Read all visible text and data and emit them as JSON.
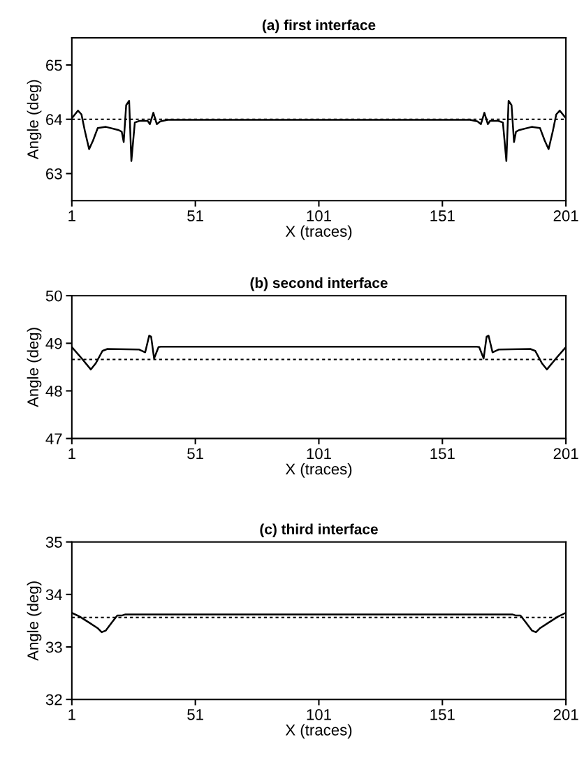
{
  "chart_data": [
    {
      "type": "line",
      "title": "(a) first interface",
      "xlabel": "X (traces)",
      "ylabel": "Angle (deg)",
      "xlim": [
        1,
        201
      ],
      "xticks": [
        1,
        51,
        101,
        151,
        201
      ],
      "ylim": [
        62.5,
        65.5
      ],
      "yticks": [
        63,
        64,
        65
      ],
      "grid": false,
      "legend": false,
      "line_style": "solid",
      "series": [
        {
          "color": "#000000",
          "x": [
            1,
            3.5,
            4.9,
            6.3,
            8,
            9.6,
            11.5,
            14.8,
            20,
            21.2,
            22,
            23,
            24.2,
            25.1,
            26.5,
            28.4,
            31.7,
            32.6,
            34,
            35.4,
            36.8,
            39.8,
            162.2,
            165.2,
            166.6,
            168,
            169.4,
            170.3,
            173.6,
            175.5,
            176.9,
            177.8,
            179,
            180,
            180.8,
            182,
            187.2,
            190.5,
            192.4,
            194,
            195.7,
            197.1,
            198.5,
            201
          ],
          "values": [
            64.02,
            64.16,
            64.09,
            63.78,
            63.45,
            63.61,
            63.84,
            63.86,
            63.8,
            63.77,
            63.58,
            64.26,
            64.34,
            63.23,
            63.94,
            63.97,
            63.97,
            63.91,
            64.12,
            63.91,
            63.96,
            63.99,
            63.99,
            63.96,
            63.91,
            64.12,
            63.91,
            63.97,
            63.97,
            63.94,
            63.23,
            64.34,
            64.26,
            63.58,
            63.77,
            63.8,
            63.86,
            63.84,
            63.61,
            63.45,
            63.78,
            64.09,
            64.16,
            64.02
          ]
        }
      ],
      "ref_lines": [
        {
          "axis": "y",
          "value": 64.0,
          "color": "#000000",
          "line_style": "dotted"
        }
      ]
    },
    {
      "type": "line",
      "title": "(b) second interface",
      "xlabel": "X (traces)",
      "ylabel": "Angle (deg)",
      "xlim": [
        1,
        201
      ],
      "xticks": [
        1,
        51,
        101,
        151,
        201
      ],
      "ylim": [
        47,
        50
      ],
      "yticks": [
        47,
        48,
        49,
        50
      ],
      "grid": false,
      "legend": false,
      "line_style": "solid",
      "series": [
        {
          "color": "#000000",
          "x": [
            1,
            4.7,
            8.7,
            10.7,
            13.4,
            15.4,
            28.1,
            30.7,
            32.3,
            33.1,
            34.3,
            36.1,
            37.4,
            164.6,
            165.9,
            167.7,
            168.9,
            169.7,
            171.3,
            173.9,
            186.6,
            188.6,
            191.3,
            193.3,
            197.3,
            201
          ],
          "values": [
            48.92,
            48.7,
            48.45,
            48.58,
            48.84,
            48.88,
            48.87,
            48.81,
            49.16,
            49.14,
            48.68,
            48.92,
            48.93,
            48.93,
            48.92,
            48.68,
            49.14,
            49.16,
            48.81,
            48.87,
            48.88,
            48.84,
            48.58,
            48.45,
            48.7,
            48.92
          ]
        }
      ],
      "ref_lines": [
        {
          "axis": "y",
          "value": 48.66,
          "color": "#000000",
          "line_style": "dotted"
        }
      ]
    },
    {
      "type": "line",
      "title": "(c) third interface",
      "xlabel": "X (traces)",
      "ylabel": "Angle (deg)",
      "xlim": [
        1,
        201
      ],
      "xticks": [
        1,
        51,
        101,
        151,
        201
      ],
      "ylim": [
        32,
        35
      ],
      "yticks": [
        32,
        33,
        34,
        35
      ],
      "grid": false,
      "legend": false,
      "line_style": "solid",
      "series": [
        {
          "color": "#000000",
          "x": [
            1,
            4.1,
            8.1,
            11.4,
            13.1,
            14.7,
            17.4,
            19.4,
            21.4,
            22.7,
            179.3,
            180.6,
            182.6,
            184.6,
            187.3,
            188.9,
            190.6,
            193.9,
            197.9,
            201
          ],
          "values": [
            33.65,
            33.58,
            33.46,
            33.36,
            33.28,
            33.31,
            33.48,
            33.6,
            33.6,
            33.62,
            33.62,
            33.6,
            33.6,
            33.48,
            33.31,
            33.28,
            33.36,
            33.46,
            33.58,
            33.65
          ]
        }
      ],
      "ref_lines": [
        {
          "axis": "y",
          "value": 33.56,
          "color": "#000000",
          "line_style": "dotted"
        }
      ]
    }
  ]
}
